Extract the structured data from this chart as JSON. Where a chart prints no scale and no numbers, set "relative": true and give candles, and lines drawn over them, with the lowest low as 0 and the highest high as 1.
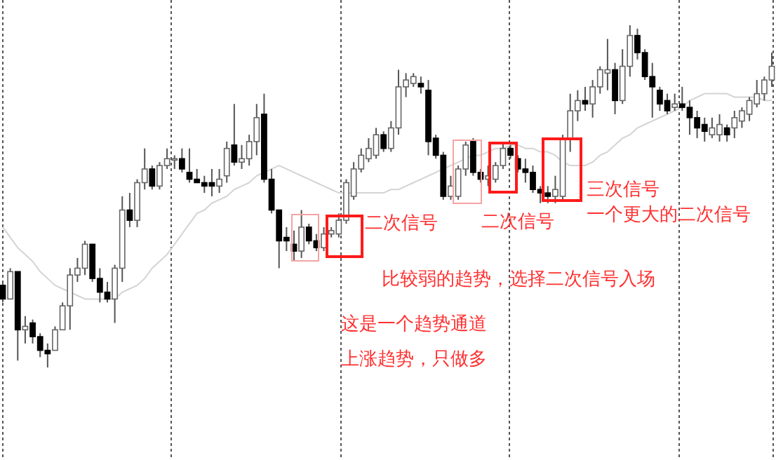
{
  "chart_data": {
    "type": "candlestick",
    "relative": true,
    "categories": [
      null,
      null,
      null,
      null,
      null,
      null,
      null,
      null,
      null,
      null,
      null,
      null,
      null,
      null,
      null,
      null,
      null,
      null,
      null,
      null,
      null,
      null,
      null,
      null,
      null,
      null,
      null,
      null,
      null,
      null,
      null,
      null,
      null,
      null,
      null,
      null,
      null,
      null,
      null,
      null,
      null,
      null,
      null,
      null,
      null,
      null,
      null,
      null,
      null,
      null,
      null,
      null,
      null,
      null,
      null,
      null,
      null,
      null,
      null,
      null,
      null,
      null,
      null,
      null,
      null,
      null,
      null,
      null,
      null,
      null,
      null,
      null,
      null,
      null,
      null,
      null,
      null,
      null,
      null,
      null,
      null,
      null,
      null,
      null,
      null,
      null,
      null,
      null,
      null,
      null,
      null,
      null,
      null,
      null,
      null,
      null,
      null,
      null,
      null,
      null,
      null,
      null,
      null,
      null
    ],
    "ohlc": [
      [
        0.24,
        0.25,
        0.19,
        0.2
      ],
      [
        0.2,
        0.29,
        0.2,
        0.28
      ],
      [
        0.28,
        0.28,
        0.02,
        0.11
      ],
      [
        0.11,
        0.15,
        0.07,
        0.12
      ],
      [
        0.13,
        0.14,
        0.07,
        0.09
      ],
      [
        0.09,
        0.1,
        0.03,
        0.05
      ],
      [
        0.05,
        0.07,
        0,
        0.04
      ],
      [
        0.05,
        0.12,
        0.05,
        0.11
      ],
      [
        0.11,
        0.19,
        0.11,
        0.18
      ],
      [
        0.18,
        0.29,
        0.11,
        0.27
      ],
      [
        0.27,
        0.32,
        0.25,
        0.29
      ],
      [
        0.29,
        0.37,
        0.27,
        0.36
      ],
      [
        0.36,
        0.36,
        0.25,
        0.26
      ],
      [
        0.26,
        0.29,
        0.19,
        0.22
      ],
      [
        0.22,
        0.25,
        0.19,
        0.2
      ],
      [
        0.2,
        0.3,
        0.13,
        0.29
      ],
      [
        0.29,
        0.5,
        0.25,
        0.46
      ],
      [
        0.46,
        0.51,
        0.41,
        0.43
      ],
      [
        0.43,
        0.55,
        0.41,
        0.54
      ],
      [
        0.54,
        0.64,
        0.52,
        0.58
      ],
      [
        0.58,
        0.59,
        0.52,
        0.53
      ],
      [
        0.53,
        0.6,
        0.52,
        0.59
      ],
      [
        0.59,
        0.64,
        0.58,
        0.61
      ],
      [
        0.61,
        0.62,
        0.58,
        0.61
      ],
      [
        0.61,
        0.64,
        0.57,
        0.58
      ],
      [
        0.57,
        0.64,
        0.54,
        0.55
      ],
      [
        0.55,
        0.58,
        0.54,
        0.54
      ],
      [
        0.54,
        0.56,
        0.51,
        0.53
      ],
      [
        0.54,
        0.58,
        0.5,
        0.53
      ],
      [
        0.53,
        0.58,
        0.51,
        0.55
      ],
      [
        0.56,
        0.66,
        0.54,
        0.64
      ],
      [
        0.65,
        0.77,
        0.59,
        0.6
      ],
      [
        0.6,
        0.65,
        0.58,
        0.61
      ],
      [
        0.61,
        0.68,
        0.59,
        0.66
      ],
      [
        0.66,
        0.77,
        0.62,
        0.73
      ],
      [
        0.74,
        0.8,
        0.54,
        0.55
      ],
      [
        0.55,
        0.58,
        0.45,
        0.46
      ],
      [
        0.46,
        0.46,
        0.29,
        0.37
      ],
      [
        0.38,
        0.41,
        0.34,
        0.37
      ],
      [
        0.36,
        0.4,
        0.31,
        0.34
      ],
      [
        0.34,
        0.46,
        0.32,
        0.41
      ],
      [
        0.41,
        0.42,
        0.36,
        0.37
      ],
      [
        0.37,
        0.39,
        0.34,
        0.35
      ],
      [
        0.35,
        0.41,
        0.34,
        0.39
      ],
      [
        0.39,
        0.41,
        0.38,
        0.4
      ],
      [
        0.39,
        0.45,
        0.38,
        0.43
      ],
      [
        0.43,
        0.55,
        0.42,
        0.54
      ],
      [
        0.5,
        0.6,
        0.49,
        0.58
      ],
      [
        0.58,
        0.64,
        0.57,
        0.62
      ],
      [
        0.61,
        0.67,
        0.6,
        0.64
      ],
      [
        0.62,
        0.7,
        0.61,
        0.68
      ],
      [
        0.68,
        0.69,
        0.63,
        0.64
      ],
      [
        0.64,
        0.72,
        0.63,
        0.7
      ],
      [
        0.7,
        0.87,
        0.68,
        0.82
      ],
      [
        0.82,
        0.86,
        0.79,
        0.84
      ],
      [
        0.83,
        0.86,
        0.82,
        0.85
      ],
      [
        0.83,
        0.85,
        0.8,
        0.82
      ],
      [
        0.81,
        0.84,
        0.62,
        0.66
      ],
      [
        0.67,
        0.68,
        0.61,
        0.62
      ],
      [
        0.62,
        0.63,
        0.49,
        0.5
      ],
      [
        0.5,
        0.56,
        0.49,
        0.53
      ],
      [
        0.5,
        0.59,
        0.49,
        0.58
      ],
      [
        0.58,
        0.66,
        0.56,
        0.65
      ],
      [
        0.66,
        0.67,
        0.56,
        0.57
      ],
      [
        0.57,
        0.58,
        0.54,
        0.55
      ],
      [
        0.55,
        0.59,
        0.53,
        0.56
      ],
      [
        0.55,
        0.6,
        0.54,
        0.59
      ],
      [
        0.59,
        0.66,
        0.58,
        0.64
      ],
      [
        0.64,
        0.65,
        0.61,
        0.62
      ],
      [
        0.61,
        0.62,
        0.57,
        0.58
      ],
      [
        0.58,
        0.61,
        0.54,
        0.57
      ],
      [
        0.57,
        0.59,
        0.51,
        0.52
      ],
      [
        0.52,
        0.53,
        0.48,
        0.51
      ],
      [
        0.51,
        0.53,
        0.48,
        0.5
      ],
      [
        0.5,
        0.56,
        0.48,
        0.52
      ],
      [
        0.5,
        0.68,
        0.49,
        0.67
      ],
      [
        0.67,
        0.8,
        0.63,
        0.75
      ],
      [
        0.75,
        0.81,
        0.72,
        0.78
      ],
      [
        0.78,
        0.82,
        0.75,
        0.77
      ],
      [
        0.77,
        0.84,
        0.73,
        0.82
      ],
      [
        0.82,
        0.88,
        0.8,
        0.87
      ],
      [
        0.86,
        0.96,
        0.81,
        0.87
      ],
      [
        0.87,
        0.89,
        0.74,
        0.78
      ],
      [
        0.78,
        0.93,
        0.77,
        0.88
      ],
      [
        0.88,
        1,
        0.85,
        0.97
      ],
      [
        0.97,
        0.99,
        0.9,
        0.92
      ],
      [
        0.92,
        0.93,
        0.84,
        0.85
      ],
      [
        0.85,
        0.89,
        0.73,
        0.82
      ],
      [
        0.81,
        0.82,
        0.75,
        0.77
      ],
      [
        0.78,
        0.8,
        0.74,
        0.75
      ],
      [
        0.76,
        0.8,
        0.75,
        0.77
      ],
      [
        0.77,
        0.82,
        0.75,
        0.76
      ],
      [
        0.76,
        0.78,
        0.68,
        0.73
      ],
      [
        0.73,
        0.75,
        0.67,
        0.7
      ],
      [
        0.71,
        0.73,
        0.66,
        0.69
      ],
      [
        0.68,
        0.73,
        0.67,
        0.7
      ],
      [
        0.68,
        0.74,
        0.66,
        0.71
      ],
      [
        0.7,
        0.71,
        0.66,
        0.68
      ],
      [
        0.7,
        0.75,
        0.67,
        0.73
      ],
      [
        0.72,
        0.76,
        0.7,
        0.75
      ],
      [
        0.74,
        0.79,
        0.72,
        0.78
      ],
      [
        0.77,
        0.84,
        0.76,
        0.8
      ],
      [
        0.8,
        0.85,
        0.78,
        0.84
      ],
      [
        0.84,
        0.92,
        0.82,
        0.88
      ]
    ],
    "series": [
      {
        "type": "line",
        "color": "#d4d4d4",
        "values": [
          0.41,
          0.38,
          0.35,
          0.33,
          0.31,
          0.28,
          0.26,
          0.24,
          0.23,
          0.22,
          0.21,
          0.2,
          0.2,
          0.2,
          0.2,
          0.2,
          0.22,
          0.23,
          0.24,
          0.26,
          0.29,
          0.31,
          0.33,
          0.36,
          0.39,
          0.42,
          0.45,
          0.46,
          0.48,
          0.49,
          0.5,
          0.52,
          0.53,
          0.54,
          0.56,
          0.57,
          0.58,
          0.59,
          0.58,
          0.57,
          0.56,
          0.55,
          0.54,
          0.53,
          0.52,
          0.51,
          0.51,
          0.51,
          0.51,
          0.51,
          0.51,
          0.51,
          0.52,
          0.52,
          0.53,
          0.54,
          0.55,
          0.56,
          0.57,
          0.58,
          0.59,
          0.6,
          0.61,
          0.62,
          0.62,
          0.63,
          0.64,
          0.64,
          0.65,
          0.65,
          0.64,
          0.64,
          0.63,
          0.63,
          0.62,
          0.6,
          0.59,
          0.59,
          0.59,
          0.6,
          0.62,
          0.63,
          0.65,
          0.67,
          0.68,
          0.7,
          0.71,
          0.72,
          0.73,
          0.74,
          0.75,
          0.76,
          0.78,
          0.79,
          0.8,
          0.8,
          0.8,
          0.8,
          0.79,
          0.79,
          0.79,
          0.79,
          0.78,
          0.78
        ]
      }
    ],
    "annotations": [
      "二次信号",
      "二次信号",
      "三次信号",
      "一个更大的二次信号",
      "比较弱的趋势，选择二次信号入场",
      "这是一个趋势通道",
      "上涨趋势，只做多"
    ]
  }
}
